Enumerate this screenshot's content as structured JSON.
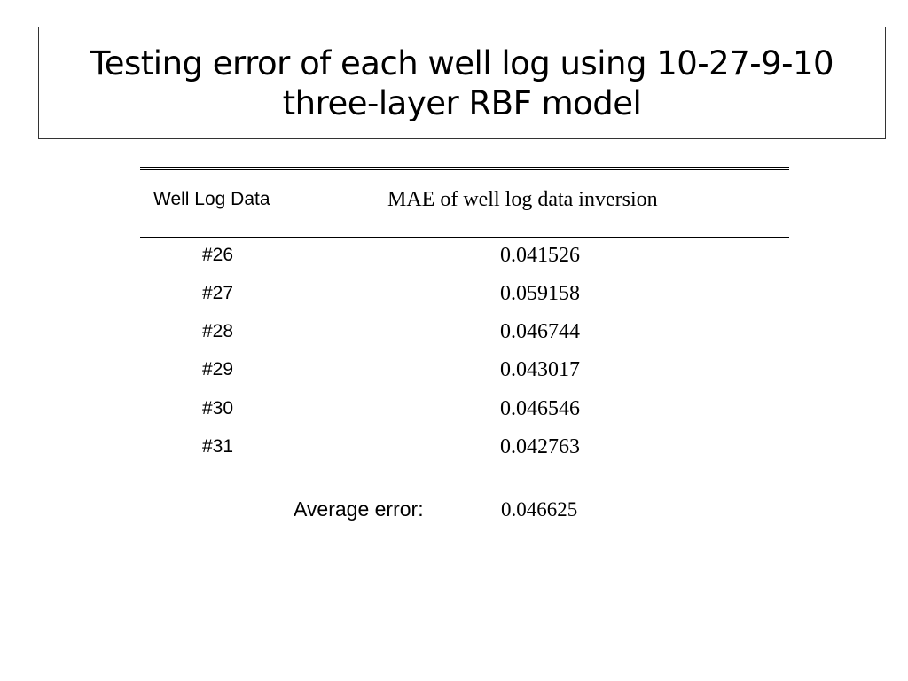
{
  "title": {
    "line1": "Testing error of each well log using 10-27-9-10",
    "line2": "three-layer RBF model"
  },
  "table": {
    "headers": [
      "Well Log Data",
      "MAE of well log data inversion"
    ],
    "rows": [
      {
        "log": "#26",
        "mae": "0.041526"
      },
      {
        "log": "#27",
        "mae": "0.059158"
      },
      {
        "log": "#28",
        "mae": "0.046744"
      },
      {
        "log": "#29",
        "mae": "0.043017"
      },
      {
        "log": "#30",
        "mae": "0.046546"
      },
      {
        "log": "#31",
        "mae": "0.042763"
      }
    ]
  },
  "summary": {
    "label": "Average error:",
    "value": "0.046625"
  }
}
